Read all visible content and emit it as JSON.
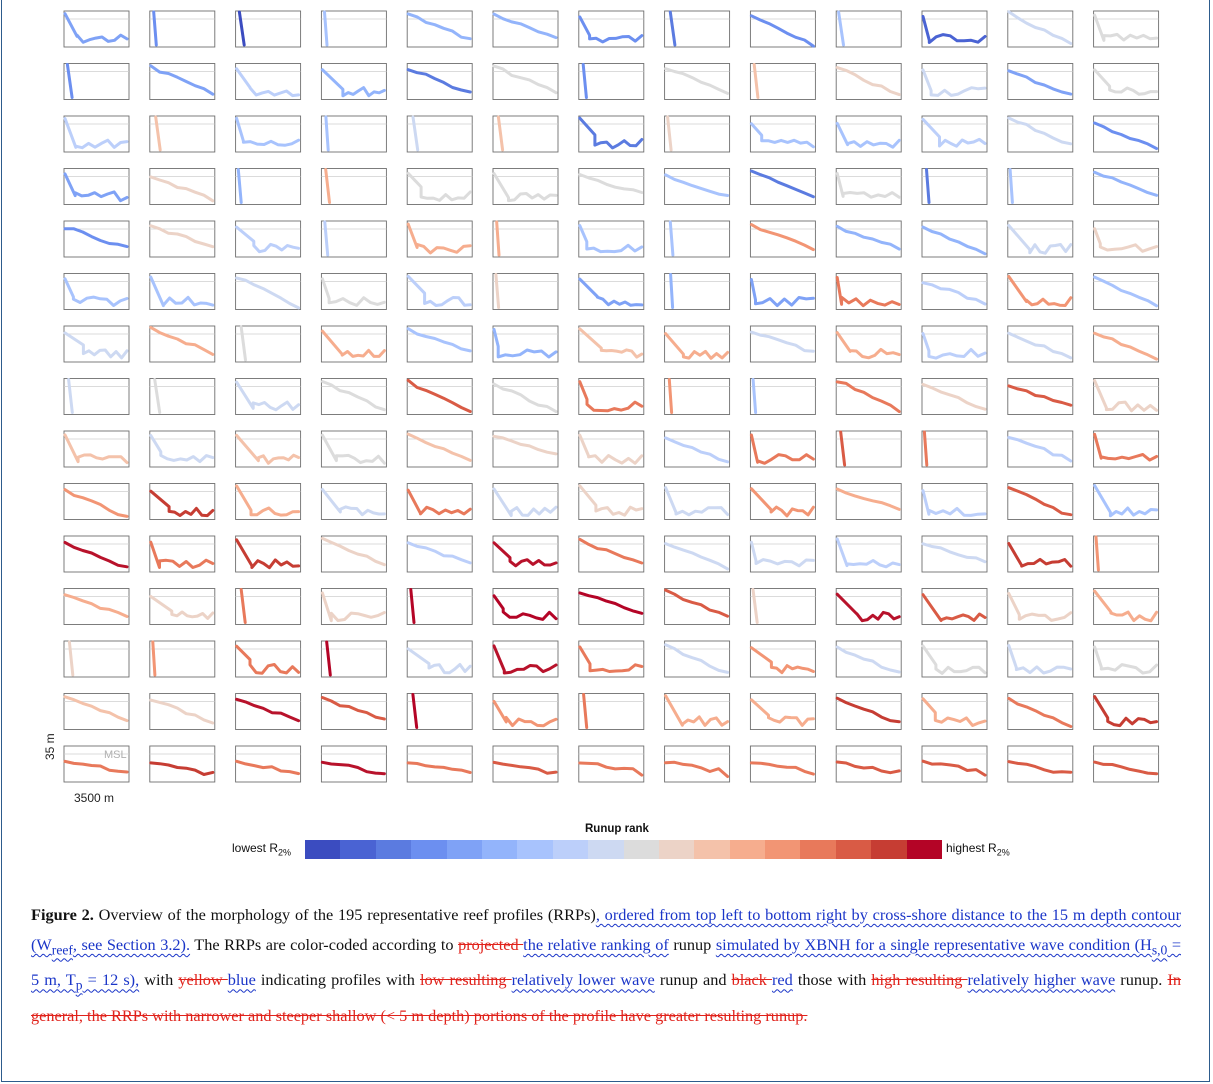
{
  "figure": {
    "y_scale_label": "35 m",
    "x_scale_label": "3500 m",
    "msl_label": "MSL",
    "colorbar": {
      "title": "Runup rank",
      "low_label": "lowest R",
      "low_sub": "2%",
      "high_label": "highest R",
      "high_sub": "2%",
      "colors": [
        "#3b4cc0",
        "#4a63d3",
        "#5b7be0",
        "#6c8ff0",
        "#7fa2f6",
        "#93b4fb",
        "#a8c3fd",
        "#bccffa",
        "#cdd9f2",
        "#dcdcdc",
        "#ecd3c7",
        "#f4c2aa",
        "#f6ad8e",
        "#f29574",
        "#e8795b",
        "#d95b45",
        "#c63d33",
        "#b40426"
      ]
    },
    "grid": {
      "rows": 15,
      "cols": 13,
      "rank_colors": [
        "#b40426",
        "#b8122b",
        "#c63d33",
        "#d95b45",
        "#e8795b",
        "#f29574",
        "#f6ad8e",
        "#f4c2aa",
        "#ecd3c7",
        "#dcdcdc",
        "#cdd9f2",
        "#bccffa",
        "#a8c3fd",
        "#93b4fb",
        "#7fa2f6",
        "#6c8ff0",
        "#5b7be0",
        "#4a63d3",
        "#3b4cc0"
      ]
    }
  },
  "caption": {
    "segments": [
      {
        "t": "Figure 2.",
        "s": "b"
      },
      {
        "t": " Overview of the morphology of the 195 representative reef profiles (RRPs)",
        "s": "n"
      },
      {
        "t": ", ordered from top left to bottom right by cross-shore distance to the 15 m depth contour (W",
        "s": "i"
      },
      {
        "t": "reef",
        "s": "isub"
      },
      {
        "t": ", see Section 3.2).",
        "s": "i"
      },
      {
        "t": " The RRPs are color-coded according to ",
        "s": "n"
      },
      {
        "t": "projected ",
        "s": "d"
      },
      {
        "t": "the relative ranking of",
        "s": "i"
      },
      {
        "t": " runup ",
        "s": "n"
      },
      {
        "t": "simulated by XBNH for a single representative wave condition (H",
        "s": "i"
      },
      {
        "t": "s,0",
        "s": "isub"
      },
      {
        "t": " = 5 m, T",
        "s": "i"
      },
      {
        "t": "p",
        "s": "isub"
      },
      {
        "t": " = 12 s),",
        "s": "i"
      },
      {
        "t": " with ",
        "s": "n"
      },
      {
        "t": "yellow ",
        "s": "d"
      },
      {
        "t": "blue",
        "s": "i"
      },
      {
        "t": " indicating profiles with ",
        "s": "n"
      },
      {
        "t": "low resulting ",
        "s": "d"
      },
      {
        "t": "relatively lower wave",
        "s": "i"
      },
      {
        "t": " runup and ",
        "s": "n"
      },
      {
        "t": "black ",
        "s": "d"
      },
      {
        "t": "red",
        "s": "i"
      },
      {
        "t": " those with ",
        "s": "n"
      },
      {
        "t": "high resulting ",
        "s": "d"
      },
      {
        "t": "relatively higher wave",
        "s": "i"
      },
      {
        "t": " runup. ",
        "s": "n"
      },
      {
        "t": "In general, the RRPs with narrower and steeper shallow (< 5 m depth) portions of the profile have greater resulting runup.",
        "s": "d"
      }
    ]
  }
}
